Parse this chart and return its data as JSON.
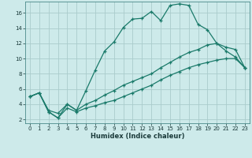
{
  "title": "",
  "xlabel": "Humidex (Indice chaleur)",
  "ylabel": "",
  "xlim": [
    -0.5,
    23.5
  ],
  "ylim": [
    1.5,
    17.5
  ],
  "bg_color": "#cdeaea",
  "grid_color": "#aacccc",
  "line_color": "#1a7a6a",
  "line1_x": [
    0,
    1,
    2,
    3,
    4,
    5,
    6,
    7,
    8,
    9,
    10,
    11,
    12,
    13,
    14,
    15,
    16,
    17,
    18,
    19,
    20,
    21,
    22,
    23
  ],
  "line1_y": [
    5.0,
    5.5,
    3.0,
    2.2,
    4.0,
    3.2,
    5.8,
    8.5,
    11.0,
    12.2,
    14.1,
    15.2,
    15.3,
    16.2,
    15.0,
    17.0,
    17.2,
    17.0,
    14.5,
    13.8,
    12.0,
    11.0,
    10.2,
    8.8
  ],
  "line2_x": [
    0,
    1,
    2,
    3,
    4,
    5,
    6,
    7,
    8,
    9,
    10,
    11,
    12,
    13,
    14,
    15,
    16,
    17,
    18,
    19,
    20,
    21,
    22,
    23
  ],
  "line2_y": [
    5.0,
    5.5,
    3.0,
    2.2,
    3.5,
    3.0,
    3.5,
    3.8,
    4.2,
    4.5,
    5.0,
    5.5,
    6.0,
    6.5,
    7.2,
    7.8,
    8.3,
    8.8,
    9.2,
    9.5,
    9.8,
    10.0,
    10.0,
    8.8
  ],
  "line3_x": [
    0,
    1,
    2,
    3,
    4,
    5,
    6,
    7,
    8,
    9,
    10,
    11,
    12,
    13,
    14,
    15,
    16,
    17,
    18,
    19,
    20,
    21,
    22,
    23
  ],
  "line3_y": [
    5.0,
    5.5,
    3.2,
    2.8,
    4.0,
    3.2,
    4.0,
    4.5,
    5.2,
    5.8,
    6.5,
    7.0,
    7.5,
    8.0,
    8.8,
    9.5,
    10.2,
    10.8,
    11.2,
    11.8,
    12.0,
    11.5,
    11.2,
    8.8
  ],
  "xticks": [
    0,
    1,
    2,
    3,
    4,
    5,
    6,
    7,
    8,
    9,
    10,
    11,
    12,
    13,
    14,
    15,
    16,
    17,
    18,
    19,
    20,
    21,
    22,
    23
  ],
  "yticks": [
    2,
    4,
    6,
    8,
    10,
    12,
    14,
    16
  ],
  "marker": "+",
  "markersize": 3,
  "linewidth": 0.9,
  "markeredgewidth": 0.9
}
